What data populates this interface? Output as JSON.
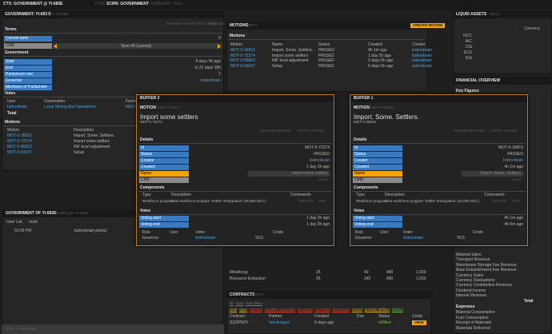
{
  "top_bar": {
    "context": "CTX: GOVERNMENT @ YI-683E",
    "contexts": "CTXS",
    "screen": "SCRN: GOVERNMENT",
    "buttons": [
      "SCRN",
      "ADD",
      "FULL"
    ]
  },
  "government": {
    "title": "GOVERNMENT: YI-683 E",
    "code": "GOV YI-683E",
    "terms_heading": "Terms",
    "term_actions": [
      "PREVIEW",
      "ADMIT NEW TERM",
      "REVOKE"
    ],
    "current_term_label": "Current term",
    "current_term": 0,
    "cmd_label": "CMD",
    "selected_term": "Term #0 (current)",
    "government_heading": "Government",
    "fields": [
      {
        "label": "Start",
        "value": "6 days 5h ago"
      },
      {
        "label": "End",
        "value": "in 21 days 18h"
      },
      {
        "label": "Parliament size",
        "value": 1
      },
      {
        "label": "Governor",
        "value": "bobnobrain"
      },
      {
        "label": "Members of Parliament"
      }
    ],
    "votes_heading": "Votes",
    "votes_columns": [
      "User",
      "Corporation",
      "Faction"
    ],
    "votes_rows": [
      [
        "bobnobrain",
        "Lunar Mining And Operations",
        "NEO C"
      ]
    ],
    "votes_total": "Total",
    "motions_heading": "Motions",
    "motions_columns": [
      "Motion",
      "Description"
    ],
    "motions_rows": [
      [
        "MOT-0-36815",
        "Import. Some. Settlers."
      ],
      [
        "MOT-0-72274",
        "Import some settlers"
      ],
      [
        "MOT-0-85833",
        "INF level adjustment"
      ],
      [
        "MOT-0-83547",
        "Setup"
      ]
    ]
  },
  "motions_panel": {
    "title": "MOTIONS",
    "code": "MOTI",
    "create": "CREATE MOTION",
    "heading": "Motions",
    "columns": [
      "Motion",
      "Name",
      "Status",
      "Created",
      "Creator"
    ],
    "rows": [
      [
        "MOT-0-36815",
        "Import. Some. Settlers.",
        "PASSED",
        "4h 1m ago",
        "bobnobrain"
      ],
      [
        "MOT-0-72274",
        "Import some settlers",
        "PASSED",
        "1 day 2h ago",
        "bobnobrain"
      ],
      [
        "MOT-0-85833",
        "INF level adjustment",
        "PASSED",
        "2 days 5h ago",
        "bobnobrain"
      ],
      [
        "MOT-0-83547",
        "Setup",
        "PASSED",
        "6 days 5h ago",
        "bobnobrain"
      ]
    ]
  },
  "liquid_assets": {
    "title": "LIQUID ASSETS",
    "code": "FIN-LA",
    "column": "Currency",
    "currencies": [
      "NCC",
      "AIC",
      "CIS",
      "ECD",
      "ICA"
    ]
  },
  "financial_overview": {
    "title": "FINANCIAL OVERVIEW",
    "heading": "Key Figures",
    "revenue_items": [
      "Material Sales",
      "Transport Revenue",
      "Warehouse Storage Fee Revenue",
      "Base Establishment Fee Revenue",
      "Currency Sales",
      "Currency Fluctuations",
      "Currency Contribution Revenue",
      "Dividend Income",
      "Interest Revenue"
    ],
    "total": "Total",
    "expenses_heading": "Expenses",
    "expense_items": [
      "Material Consumption",
      "Fuel Consumption",
      "Receipt of Materials",
      "Materials Delivered"
    ]
  },
  "buffers": [
    {
      "title": "BUFFER 2",
      "type": "MOTION",
      "code": "MOT-0-72274",
      "name": "Import some settlers",
      "subtitle": "MOT-0-72274",
      "actions": [
        "DELETE MOTION",
        "START VOTING"
      ],
      "details_heading": "Details",
      "details": [
        {
          "label": "Id",
          "value": "MOT-0-72274"
        },
        {
          "label": "Status",
          "value": "PASSED"
        },
        {
          "label": "Creator",
          "value": "bobnobrain"
        },
        {
          "label": "Created",
          "value": "1 day 2h ago"
        }
      ],
      "name_label": "Name",
      "name_input": "Import some settlers",
      "cmd_label": "CMD",
      "save": "SAVE",
      "components_heading": "Components",
      "components_columns": [
        "Type",
        "Description",
        "Commands"
      ],
      "components_rows": [
        {
          "type": "Workforce program",
          "description": "Start workforce program 'Settler Immigration' (25,000 NCC)",
          "commands": [
            "DELETE",
            "EDIT"
          ]
        }
      ],
      "votes_heading": "Votes",
      "vote_times": [
        {
          "label": "Voting start",
          "value": "1 day 2h ago"
        },
        {
          "label": "Voting end",
          "value": "1 day 2h ago"
        }
      ],
      "votes_columns": [
        "Role",
        "User",
        "Voter",
        "Cmds"
      ],
      "votes_rows": [
        [
          "Governor",
          "bobnobrain",
          "YES"
        ]
      ]
    },
    {
      "title": "BUFFER 1",
      "type": "MOTION",
      "code": "MOT-0-36815",
      "name": "Import. Some. Settlers.",
      "subtitle": "MOT-0-36815",
      "actions": [
        "DELETE MOTION",
        "START VOTING"
      ],
      "details_heading": "Details",
      "details": [
        {
          "label": "Id",
          "value": "MOT-0-36815"
        },
        {
          "label": "Status",
          "value": "PASSED"
        },
        {
          "label": "Creator",
          "value": "bobnobrain"
        },
        {
          "label": "Created",
          "value": "4h 1m ago"
        }
      ],
      "name_label": "Name",
      "name_input": "Import. Some. Settlers.",
      "cmd_label": "CMD",
      "save": "SAVE",
      "components_heading": "Components",
      "components_columns": [
        "Type",
        "Description",
        "Commands"
      ],
      "components_rows": [
        {
          "type": "Workforce program",
          "description": "Start workforce program 'Settler Immigration' (25,000 NCC)",
          "commands": [
            "DELETE",
            "EDIT"
          ]
        }
      ],
      "votes_heading": "Votes",
      "vote_times": [
        {
          "label": "Voting start",
          "value": "4h 1m ago"
        },
        {
          "label": "Voting end",
          "value": "4h 0m ago"
        }
      ],
      "votes_columns": [
        "Role",
        "User",
        "Voter",
        "Cmds"
      ],
      "votes_rows": [
        [
          "Governor",
          "bobnobrain",
          "YES"
        ]
      ]
    }
  ],
  "materials": {
    "rows": [
      [
        "Metallurgy",
        25,
        40,
        480,
        "1,500"
      ],
      [
        "Resource Extraction",
        25,
        240,
        480,
        "1,500"
      ]
    ]
  },
  "chat": {
    "title": "GOVERNMENT OF YI-683E",
    "code": "COMG gov-YI-683E",
    "tabs": [
      "User List",
      "mute"
    ],
    "messages": [
      {
        "time": "01:56 PM",
        "text": "bobnobrain joined."
      }
    ],
    "input": "Enter a message..."
  },
  "contracts": {
    "title": "CONTRACTS",
    "code": "CONTS",
    "filters": [
      "all",
      "none",
      "hide filters"
    ],
    "statuses": [
      "draft",
      "open",
      "rejected",
      "deadline exceeded",
      "breached",
      "cancelled",
      "terminated",
      "closed",
      "partially fulfilled",
      "fulfilled"
    ],
    "columns": [
      "Contract",
      "Partner",
      "Created",
      "Due",
      "Status",
      "Cmds"
    ],
    "rows": [
      {
        "contract": "SQSPN2Y",
        "partner": "hensfungus",
        "created": "6 days ago",
        "due": "-",
        "status": "fulfilled",
        "cmd": "VIEW"
      }
    ]
  }
}
